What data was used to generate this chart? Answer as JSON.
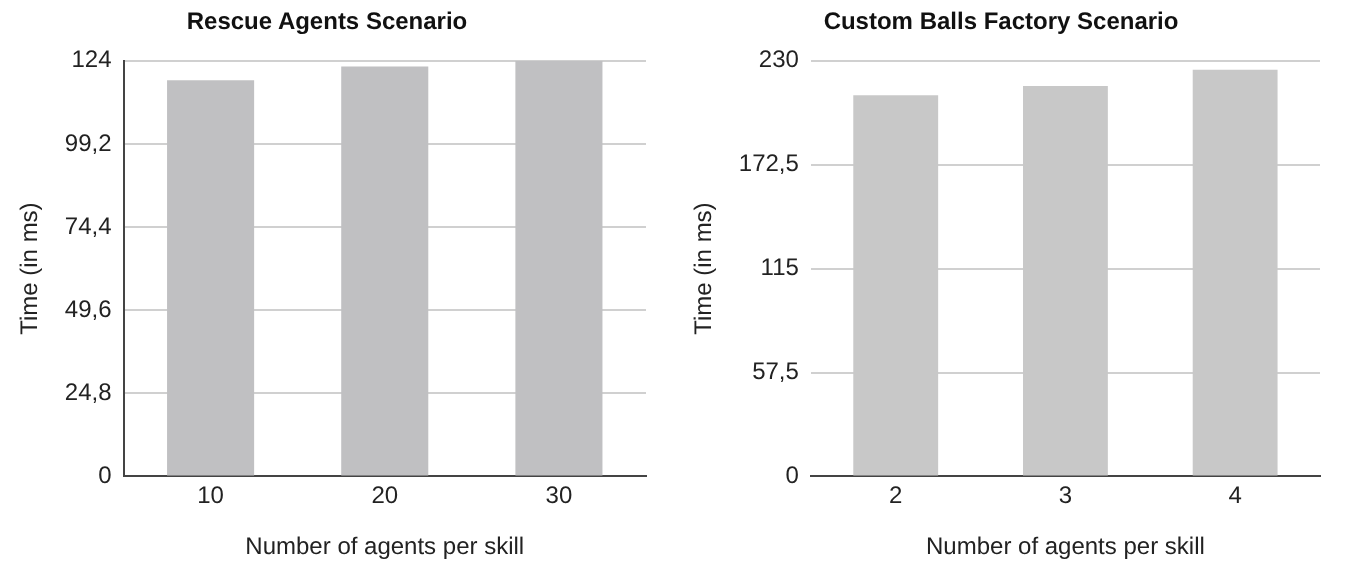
{
  "chart_data": [
    {
      "type": "bar",
      "title": "Rescue Agents Scenario",
      "xlabel": "Number of agents per skill",
      "ylabel": "Time (in ms)",
      "categories": [
        "10",
        "20",
        "30"
      ],
      "values": [
        118.2,
        122.3,
        124
      ],
      "color": "#c0c0c2",
      "ylim": [
        0,
        124
      ],
      "yticks": [
        0,
        {
          "value": 24.8,
          "label": "24,8"
        },
        {
          "value": 49.6,
          "label": "49,6"
        },
        {
          "value": 74.4,
          "label": "74,4"
        },
        {
          "value": 99.2,
          "label": "99,2"
        },
        124
      ],
      "grid": "y"
    },
    {
      "type": "bar",
      "title": "Custom Balls Factory Scenario",
      "xlabel": "Number of agents per skill",
      "ylabel": "Time (in ms)",
      "categories": [
        "2",
        "3",
        "4"
      ],
      "values": [
        211,
        216,
        225
      ],
      "color": "#c8c8c8",
      "ylim": [
        0,
        230
      ],
      "yticks": [
        0,
        {
          "value": 57.5,
          "label": "57,5"
        },
        115,
        {
          "value": 172.5,
          "label": "172,5"
        },
        230
      ],
      "grid": "y"
    }
  ]
}
